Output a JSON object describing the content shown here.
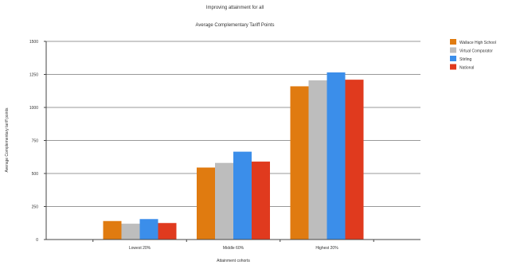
{
  "chart_data": {
    "type": "bar",
    "title": "Improving attainment for all",
    "subtitle": "Average Complementary Tariff Points",
    "xlabel": "Attainment cohorts",
    "ylabel": "Average Complementary tariff points",
    "ylim": [
      0,
      1500
    ],
    "yticks": [
      0,
      250,
      500,
      750,
      1000,
      1250,
      1500
    ],
    "ytick_labels": [
      "0",
      "250",
      "500",
      "750",
      "1000",
      "1250",
      "1500"
    ],
    "categories": [
      "Lowest 20%",
      "Middle 60%",
      "Highest 20%"
    ],
    "series": [
      {
        "name": "Wallace High School",
        "color": "#E07B10",
        "values": [
          140,
          545,
          1160
        ]
      },
      {
        "name": "Virtual Comparator",
        "color": "#BDBDBD",
        "values": [
          120,
          580,
          1205
        ]
      },
      {
        "name": "Stirling",
        "color": "#3B8EEA",
        "values": [
          155,
          665,
          1265
        ]
      },
      {
        "name": "National",
        "color": "#E03A1E",
        "values": [
          125,
          590,
          1210
        ]
      }
    ],
    "grid": true,
    "legend": "top-right"
  }
}
